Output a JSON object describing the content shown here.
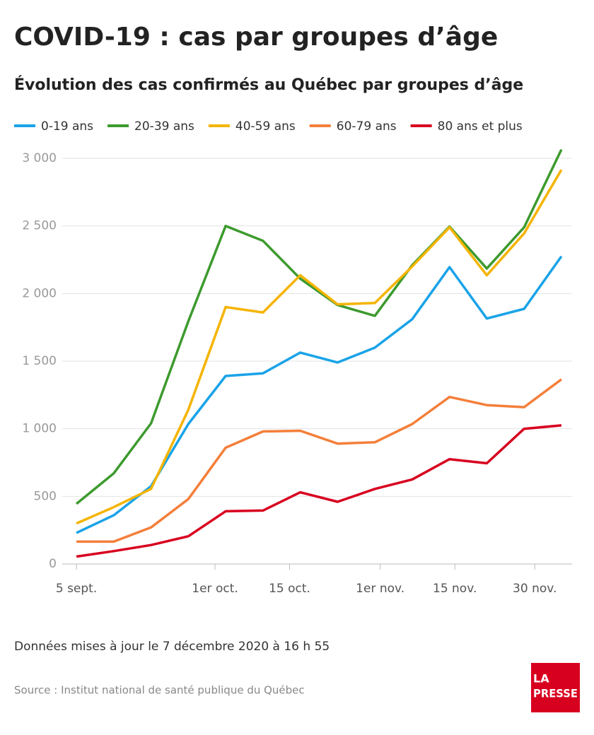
{
  "chart_data": {
    "type": "line",
    "title": "COVID-19 : cas par groupes d’âge",
    "subtitle": "Évolution des cas confirmés au Québec par groupes d’âge",
    "x": [
      "09-05",
      "09-12",
      "09-19",
      "09-26",
      "10-03",
      "10-10",
      "10-17",
      "10-24",
      "10-31",
      "11-07",
      "11-14",
      "11-21",
      "11-28",
      "12-05"
    ],
    "xlim": [
      "09-03",
      "12-07"
    ],
    "xticks": [
      {
        "value": "09-05",
        "label": "5 sept."
      },
      {
        "value": "10-01",
        "label": "1er oct."
      },
      {
        "value": "10-15",
        "label": "15 oct."
      },
      {
        "value": "11-01",
        "label": "1er nov."
      },
      {
        "value": "11-15",
        "label": "15 nov."
      },
      {
        "value": "11-30",
        "label": "30 nov."
      }
    ],
    "ylim": [
      0,
      3000
    ],
    "yticks": [
      0,
      500,
      {
        "value": 1000,
        "label": "1 000"
      },
      {
        "value": 1500,
        "label": "1 500"
      },
      {
        "value": 2000,
        "label": "2 000"
      },
      {
        "value": 2500,
        "label": "2 500"
      },
      {
        "value": 3000,
        "label": "3 000"
      }
    ],
    "grid": true,
    "legend": "top",
    "series": [
      {
        "name": "0-19 ans",
        "color": "#1aa3e8",
        "values": [
          230,
          360,
          575,
          1035,
          1390,
          1410,
          1563,
          1490,
          1600,
          1810,
          2195,
          1815,
          1887,
          2275
        ]
      },
      {
        "name": "20-39 ans",
        "color": "#3d9a2e",
        "values": [
          445,
          670,
          1040,
          1795,
          2500,
          2390,
          2110,
          1915,
          1835,
          2210,
          2495,
          2185,
          2490,
          3065
        ]
      },
      {
        "name": "40-59 ans",
        "color": "#f5b400",
        "values": [
          300,
          420,
          555,
          1140,
          1900,
          1860,
          2135,
          1920,
          1930,
          2200,
          2490,
          2135,
          2445,
          2915
        ]
      },
      {
        "name": "60-79 ans",
        "color": "#f47f3a",
        "values": [
          165,
          165,
          270,
          480,
          860,
          980,
          985,
          890,
          900,
          1035,
          1235,
          1175,
          1160,
          1365
        ]
      },
      {
        "name": "80 ans et plus",
        "color": "#d8001f",
        "values": [
          55,
          95,
          140,
          205,
          390,
          395,
          530,
          460,
          555,
          625,
          775,
          745,
          1000,
          1025
        ]
      }
    ],
    "note": "Données mises à jour le 7 décembre 2020 à 16 h 55",
    "source": "Source : Institut national de santé publique du Québec"
  },
  "logo": {
    "line1": "LA",
    "line2": "PRESSE"
  }
}
